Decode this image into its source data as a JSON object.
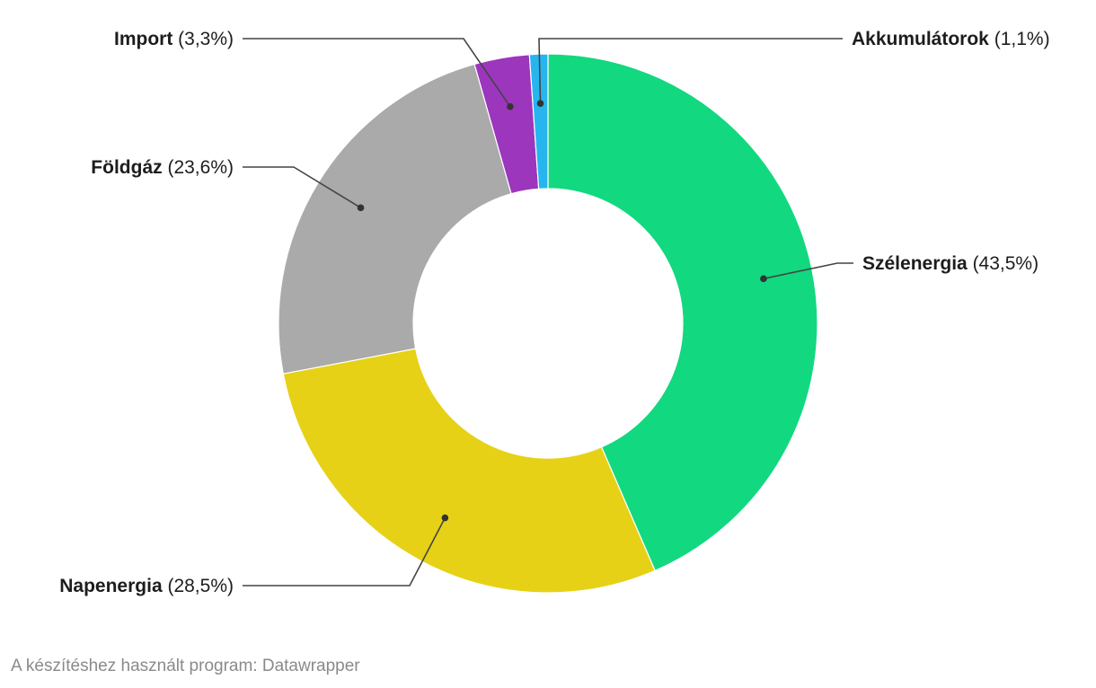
{
  "chart_data": {
    "type": "pie",
    "donut": true,
    "title": "",
    "categories": [
      "Szélenergia",
      "Napenergia",
      "Földgáz",
      "Import",
      "Akkumulátorok"
    ],
    "values": [
      43.5,
      28.5,
      23.6,
      3.3,
      1.1
    ],
    "value_labels": [
      "(43,5%)",
      "(28,5%)",
      "(23,6%)",
      "(3,3%)",
      "(1,1%)"
    ],
    "colors": [
      "#12d880",
      "#e6d116",
      "#aaaaaa",
      "#9b36bd",
      "#27b5f0"
    ],
    "start_angle": "top",
    "direction": "clockwise",
    "legend": "none"
  },
  "footer": {
    "credit": "A készítéshez használt program: Datawrapper"
  }
}
